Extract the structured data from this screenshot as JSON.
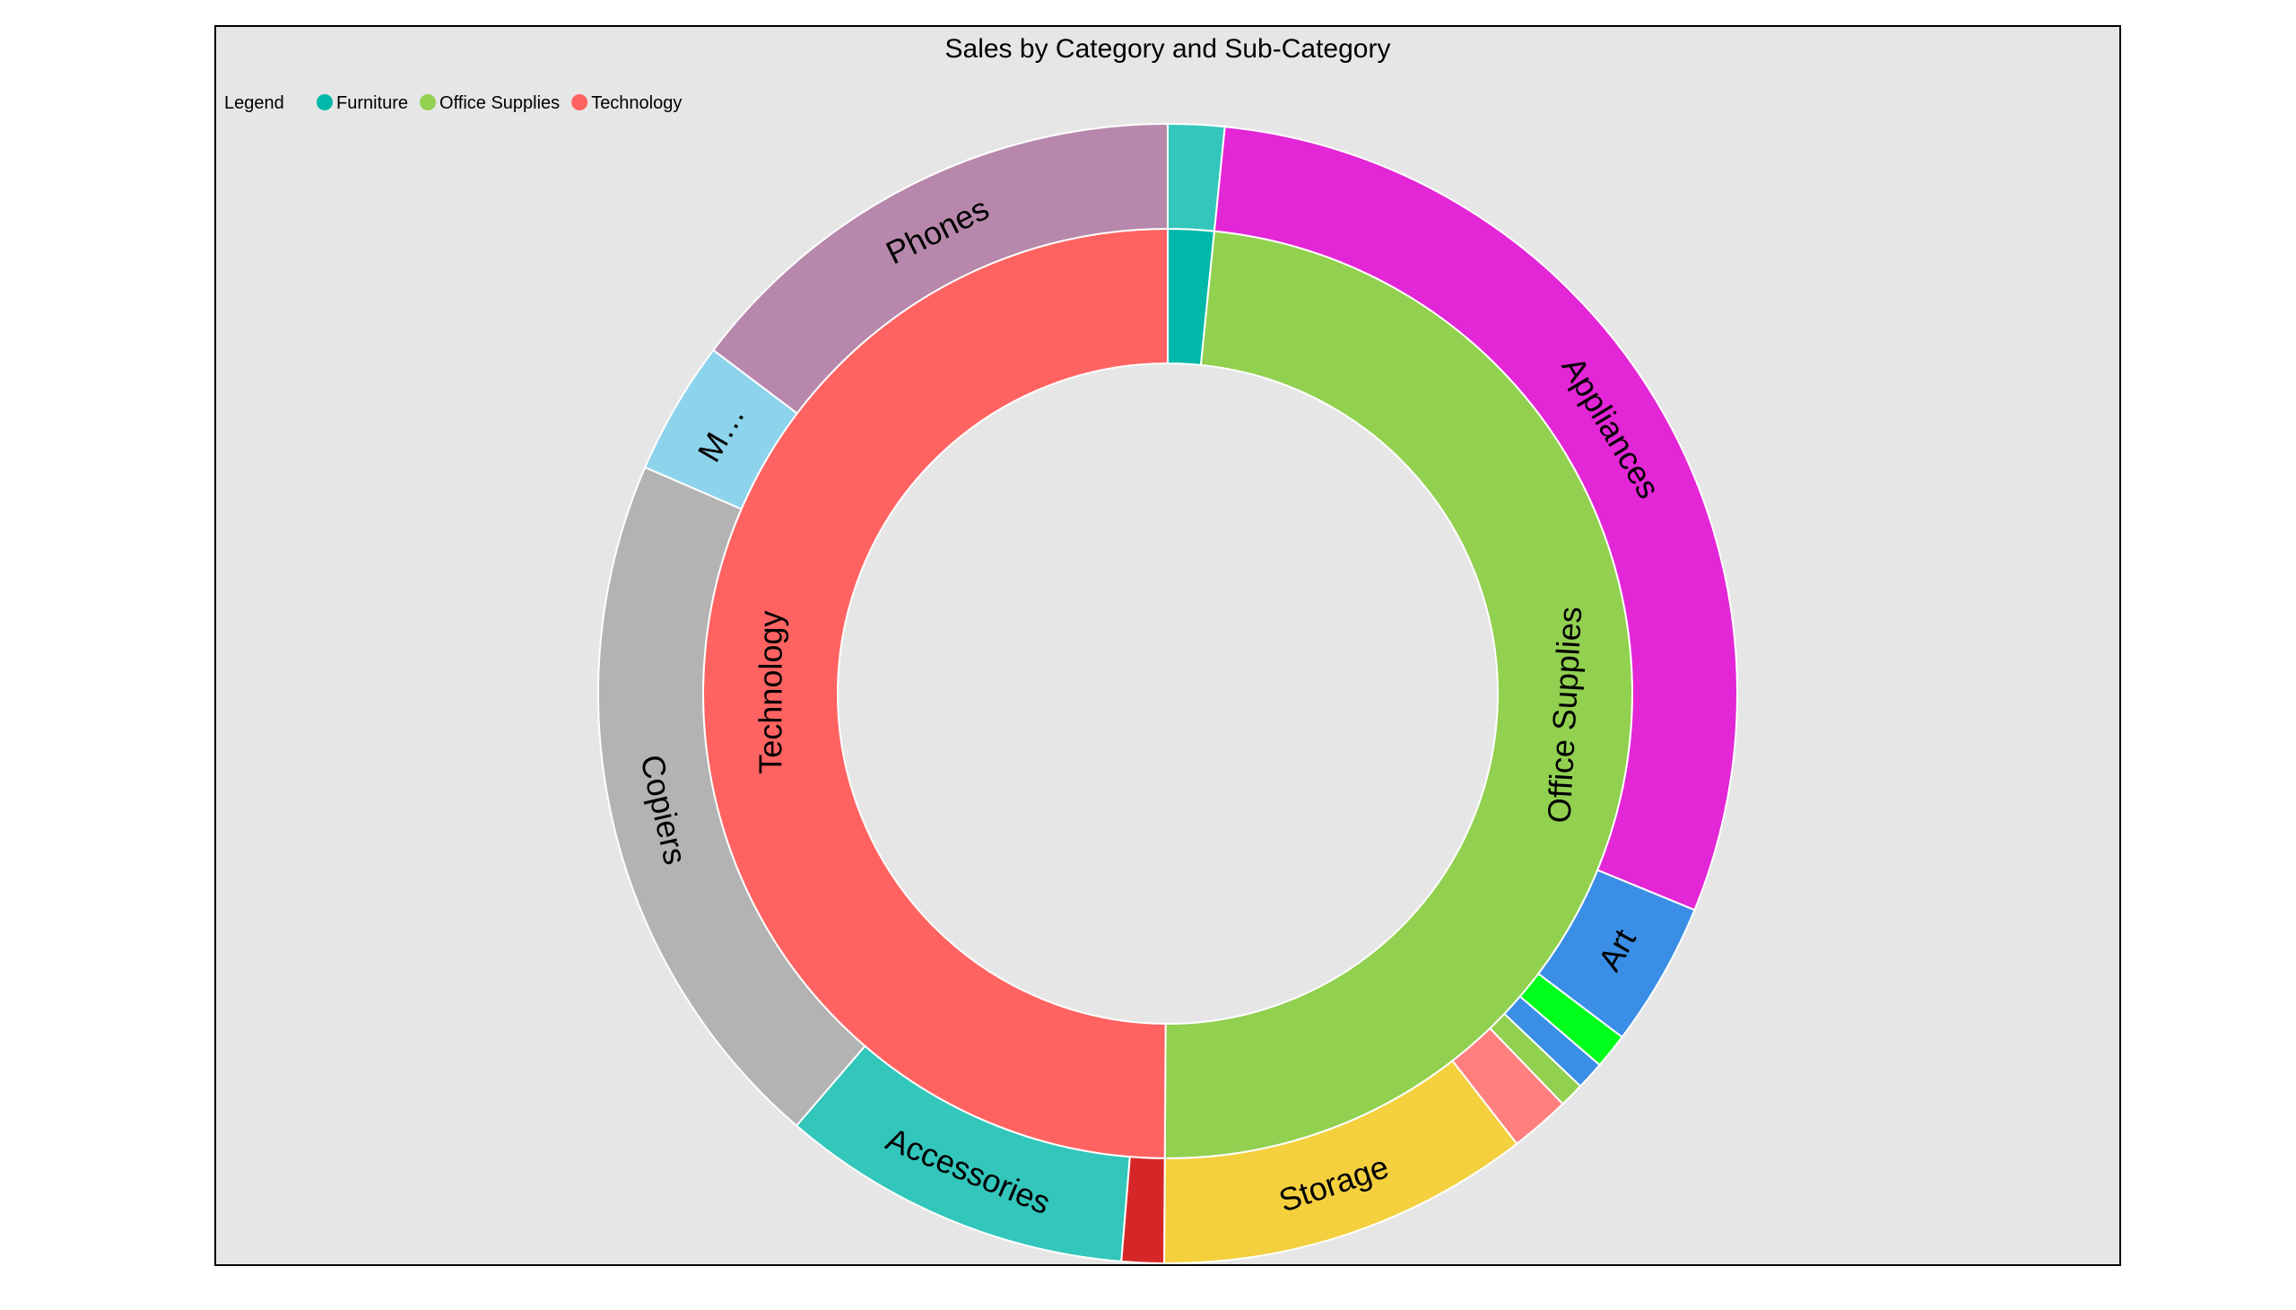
{
  "chart_data": {
    "type": "sunburst",
    "title": "Sales by Category and Sub-Category",
    "legend": {
      "title": "Legend",
      "placement": "top-left",
      "entries": [
        {
          "label": "Furniture",
          "color": "#00b8a9"
        },
        {
          "label": "Office Supplies",
          "color": "#92d050"
        },
        {
          "label": "Technology",
          "color": "#ff6361"
        }
      ]
    },
    "categories": [
      {
        "name": "Furniture",
        "share": 1.6,
        "color": "#00b8a9",
        "subcategories": [
          {
            "name": "",
            "share": 1.6,
            "color": "#33c6bb"
          }
        ]
      },
      {
        "name": "Office Supplies",
        "share": 48.5,
        "color": "#92d050",
        "subcategories": [
          {
            "name": "Appliances",
            "share": 29.6,
            "color": "#e326d6"
          },
          {
            "name": "Art",
            "share": 4.1,
            "color": "#3a8ee6"
          },
          {
            "name": "",
            "share": 1.0,
            "color": "#00ff1a"
          },
          {
            "name": "",
            "share": 0.8,
            "color": "#3a8ee6"
          },
          {
            "name": "",
            "share": 0.7,
            "color": "#92d050"
          },
          {
            "name": "",
            "share": 1.7,
            "color": "#ff7f7e"
          },
          {
            "name": "Storage",
            "share": 10.6,
            "color": "#f4d03f"
          }
        ]
      },
      {
        "name": "Technology",
        "share": 49.9,
        "color": "#ff6361",
        "subcategories": [
          {
            "name": "",
            "share": 1.2,
            "color": "#d62728"
          },
          {
            "name": "Accessories",
            "share": 10.0,
            "color": "#33c6bb"
          },
          {
            "name": "Copiers",
            "share": 20.2,
            "color": "#b3b3b3"
          },
          {
            "name": "M…",
            "share": 3.8,
            "color": "#8dd3ec"
          },
          {
            "name": "Phones",
            "share": 14.7,
            "color": "#b788ab"
          }
        ]
      }
    ]
  }
}
